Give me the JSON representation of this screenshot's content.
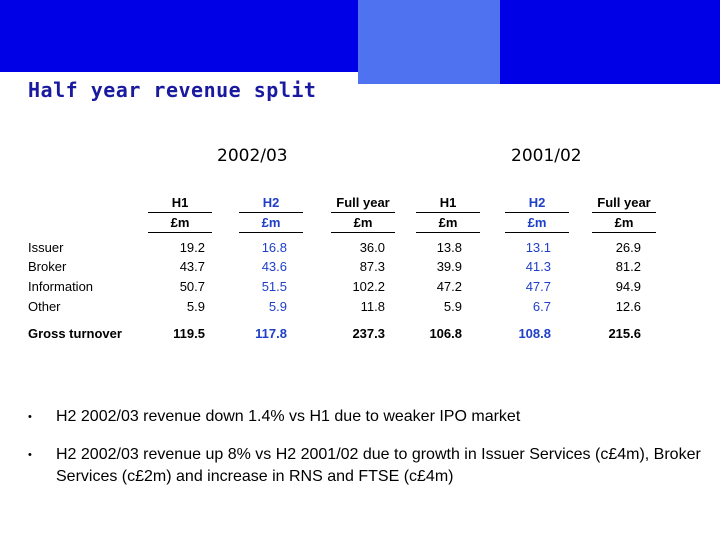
{
  "slide": {
    "title": "Half year revenue split",
    "colors": {
      "banner_dark": "#0000e6",
      "banner_mid": "#4f73f0",
      "title": "#1a1aa0",
      "h2_accent": "#1e3fc9"
    }
  },
  "table": {
    "years": [
      "2002/03",
      "2001/02"
    ],
    "columns": [
      {
        "head": "H1",
        "unit": "£m",
        "accent": false
      },
      {
        "head": "H2",
        "unit": "£m",
        "accent": true
      },
      {
        "head": "Full year",
        "unit": "£m",
        "accent": false
      },
      {
        "head": "H1",
        "unit": "£m",
        "accent": false
      },
      {
        "head": "H2",
        "unit": "£m",
        "accent": true
      },
      {
        "head": "Full year",
        "unit": "£m",
        "accent": false
      }
    ],
    "rows": [
      {
        "label": "Issuer",
        "values": [
          "19.2",
          "16.8",
          "36.0",
          "13.8",
          "13.1",
          "26.9"
        ]
      },
      {
        "label": "Broker",
        "values": [
          "43.7",
          "43.6",
          "87.3",
          "39.9",
          "41.3",
          "81.2"
        ]
      },
      {
        "label": "Information",
        "values": [
          "50.7",
          "51.5",
          "102.2",
          "47.2",
          "47.7",
          "94.9"
        ]
      },
      {
        "label": "Other",
        "values": [
          "5.9",
          "5.9",
          "11.8",
          "5.9",
          "6.7",
          "12.6"
        ]
      }
    ],
    "total": {
      "label": "Gross turnover",
      "values": [
        "119.5",
        "117.8",
        "237.3",
        "106.8",
        "108.8",
        "215.6"
      ]
    }
  },
  "bullets": [
    {
      "marker": "•",
      "text": "H2 2002/03 revenue down 1.4% vs H1 due to weaker IPO market"
    },
    {
      "marker": "•",
      "text": "H2 2002/03 revenue up 8% vs H2 2001/02 due to growth in Issuer Services (c£4m), Broker Services (c£2m) and increase in RNS and FTSE (c£4m)"
    }
  ]
}
